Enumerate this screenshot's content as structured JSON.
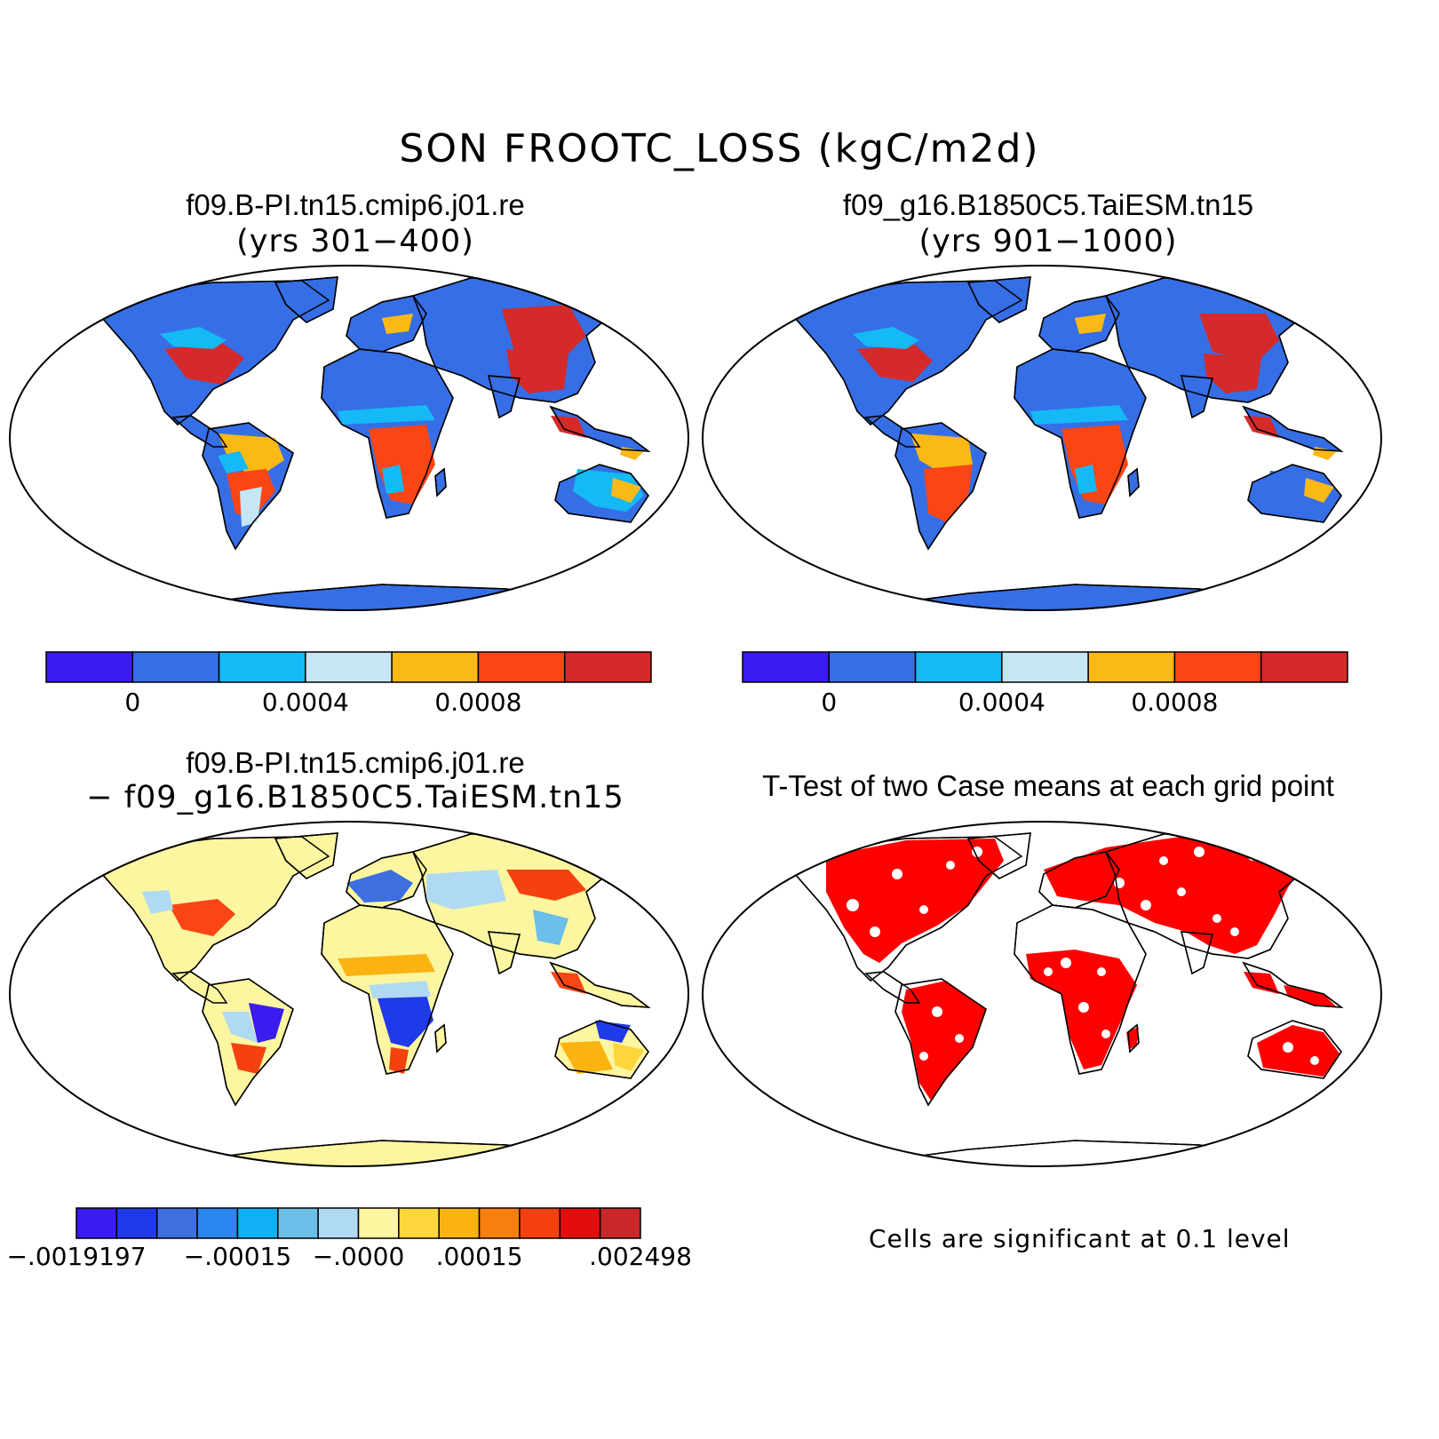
{
  "title": "SON FROOTC_LOSS (kgC/m2d)",
  "panels": [
    {
      "id": "case1",
      "title": "f09.B-PI.tn15.cmip6.j01.re",
      "subtitle": "(yrs 301−400)"
    },
    {
      "id": "case2",
      "title": "f09_g16.B1850C5.TaiESM.tn15",
      "subtitle": "(yrs 901−1000)"
    },
    {
      "id": "diff",
      "title": "f09.B-PI.tn15.cmip6.j01.re",
      "subtitle": "− f09_g16.B1850C5.TaiESM.tn15"
    },
    {
      "id": "ttest",
      "title": "T-Test of two Case means at each grid point",
      "note": "Cells are significant at 0.1 level"
    }
  ],
  "colorbar_main": {
    "colors": [
      "#3a1cf0",
      "#366ee6",
      "#14b9f5",
      "#c6e5f5",
      "#fbb916",
      "#fa4515",
      "#d42a2a"
    ],
    "labels": [
      "0",
      "0.0004",
      "0.0008"
    ]
  },
  "colorbar_diff": {
    "colors": [
      "#3a1cf0",
      "#1f3ae8",
      "#3d6fe0",
      "#2a86f0",
      "#10b0f5",
      "#6bbfe9",
      "#b0daf2",
      "#fdf6a0",
      "#fcd63a",
      "#fbb312",
      "#f77f0e",
      "#f5410f",
      "#e20d0d",
      "#c8282a"
    ],
    "labels": [
      "−.0019197",
      "−.00015",
      "−.0000",
      ".00015",
      ".002498"
    ]
  },
  "significance_color": "#ff0000",
  "land_outline_color": "#000000"
}
